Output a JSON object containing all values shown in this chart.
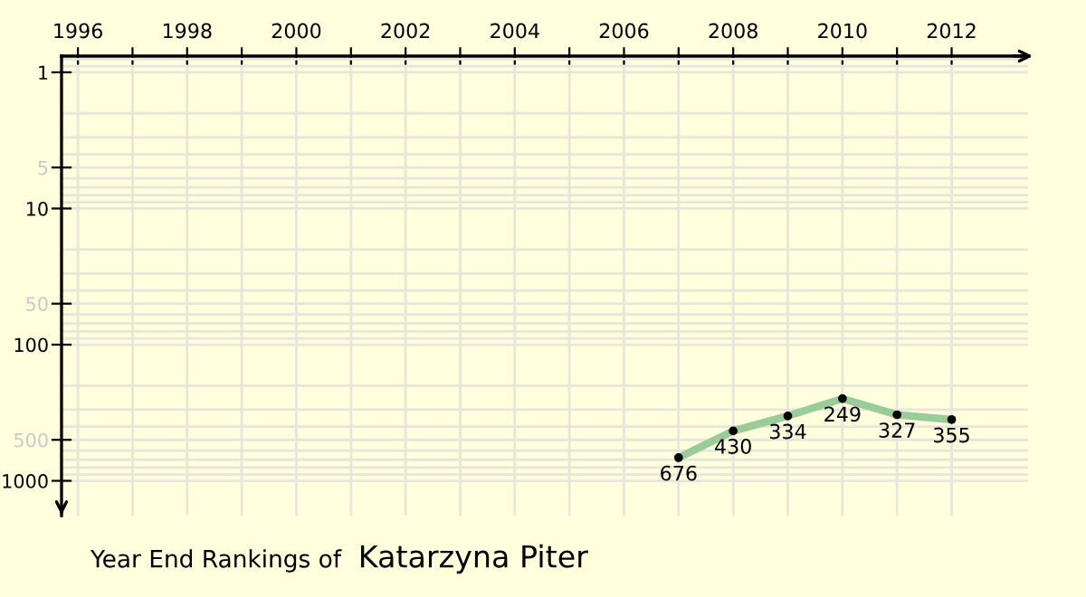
{
  "chart_data": {
    "type": "line",
    "title": "Year End Rankings of",
    "subtitle": "Katarzyna Piter",
    "x": [
      2007,
      2008,
      2009,
      2010,
      2011,
      2012
    ],
    "series": [
      {
        "color": "#99cc99",
        "values": [
          676,
          430,
          334,
          249,
          327,
          355
        ]
      }
    ],
    "data_labels": true,
    "marker": "circle",
    "line_style": "solid",
    "log": "y",
    "grid": true,
    "xlim": [
      1995.7,
      2013.4
    ],
    "xticks": [
      1996,
      {
        "value": 1997,
        "label": null
      },
      1998,
      {
        "value": 1999,
        "label": null
      },
      2000,
      {
        "value": 2001,
        "label": null
      },
      2002,
      {
        "value": 2003,
        "label": null
      },
      2004,
      {
        "value": 2005,
        "label": null
      },
      2006,
      {
        "value": 2007,
        "label": null
      },
      2008,
      {
        "value": 2009,
        "label": null
      },
      2010,
      {
        "value": 2011,
        "label": null
      },
      2012
    ],
    "ylim": [
      1800,
      0.76
    ],
    "yticks": [
      1,
      5,
      10,
      50,
      100,
      500,
      1000
    ]
  }
}
